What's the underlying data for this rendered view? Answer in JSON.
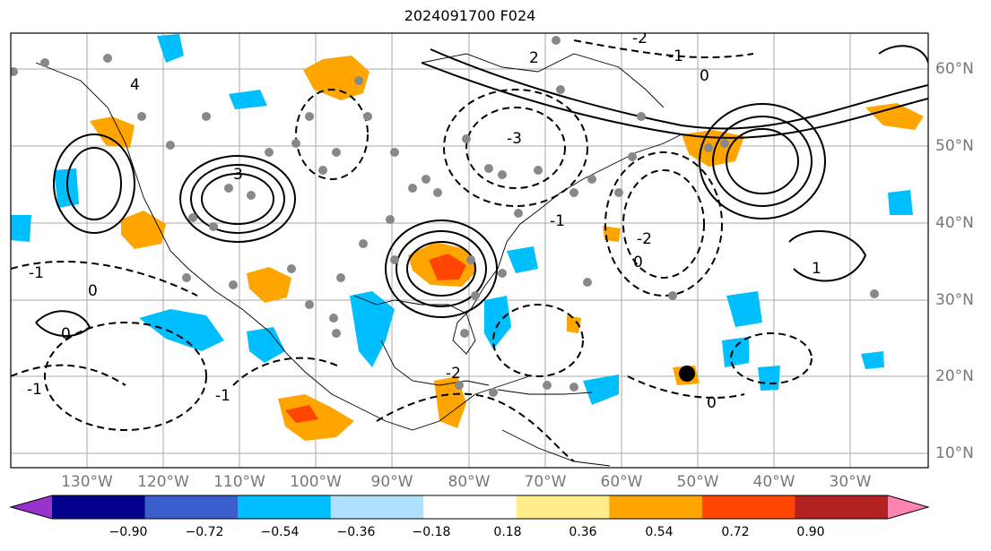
{
  "title": "2024091700 F024",
  "map": {
    "lon_range": [
      -140,
      -20
    ],
    "lat_range": [
      8,
      65
    ],
    "lon_labels": [
      "130°W",
      "120°W",
      "110°W",
      "100°W",
      "90°W",
      "80°W",
      "70°W",
      "60°W",
      "50°W",
      "40°W",
      "30°W"
    ],
    "lat_labels": [
      "60°N",
      "50°N",
      "40°N",
      "30°N",
      "20°N",
      "10°N"
    ],
    "contour_labels": [
      "-2",
      "-1",
      "0",
      "-3",
      "2",
      "3",
      "4",
      "-1",
      "0",
      "1",
      "-2",
      "0",
      "-1",
      "-2",
      "-1",
      "0",
      "-1",
      "0"
    ],
    "colors": {
      "positive_contour": "#000000",
      "negative_contour": "#000000",
      "grid": "#aaaaaa",
      "marker": "#888888"
    }
  },
  "colorbar": {
    "ticks": [
      "−0.90",
      "−0.72",
      "−0.54",
      "−0.36",
      "−0.18",
      "0.18",
      "0.36",
      "0.54",
      "0.72",
      "0.90"
    ],
    "colors": [
      "#9a32cd",
      "#00008b",
      "#3a5fcd",
      "#00bfff",
      "#b0e2ff",
      "#ffffff",
      "#ffec8b",
      "#ffa500",
      "#ff4500",
      "#b22222",
      "#ff83b3"
    ]
  }
}
